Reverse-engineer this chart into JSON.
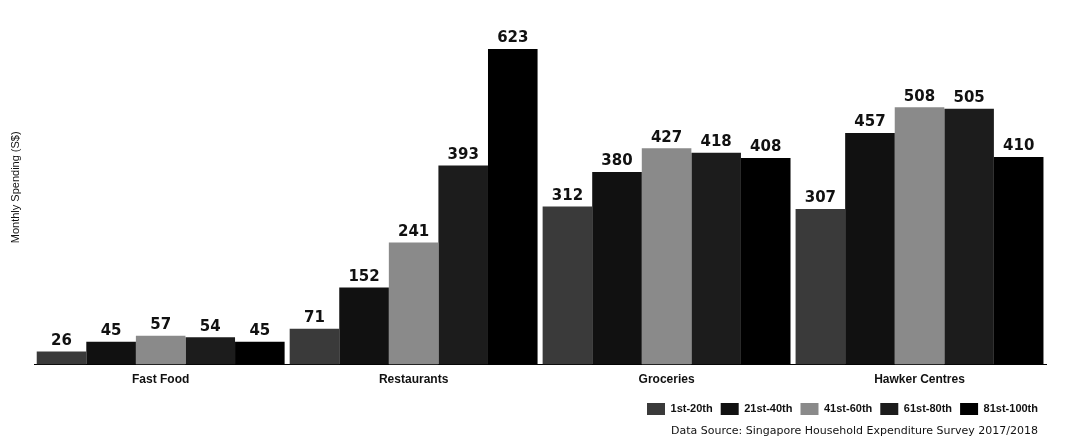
{
  "chart_data": {
    "type": "bar",
    "ylabel": "Monthly Spending (S$)",
    "categories": [
      "Fast Food",
      "Restaurants",
      "Groceries",
      "Hawker Centres"
    ],
    "series": [
      {
        "name": "1st-20th",
        "color": "#3a3a3a",
        "values": [
          26,
          71,
          312,
          307
        ]
      },
      {
        "name": "21st-40th",
        "color": "#111111",
        "values": [
          45,
          152,
          380,
          457
        ]
      },
      {
        "name": "41st-60th",
        "color": "#8a8a8a",
        "values": [
          57,
          241,
          427,
          508
        ]
      },
      {
        "name": "61st-80th",
        "color": "#1c1c1c",
        "values": [
          54,
          393,
          418,
          505
        ]
      },
      {
        "name": "81st-100th",
        "color": "#000000",
        "values": [
          45,
          623,
          408,
          410
        ]
      }
    ],
    "tick_labels": "x",
    "data_labels": true,
    "legend": "bottom right",
    "grid": false,
    "annotations": [
      "Data Source: Singapore Household Expenditure Survey 2017/2018"
    ]
  }
}
